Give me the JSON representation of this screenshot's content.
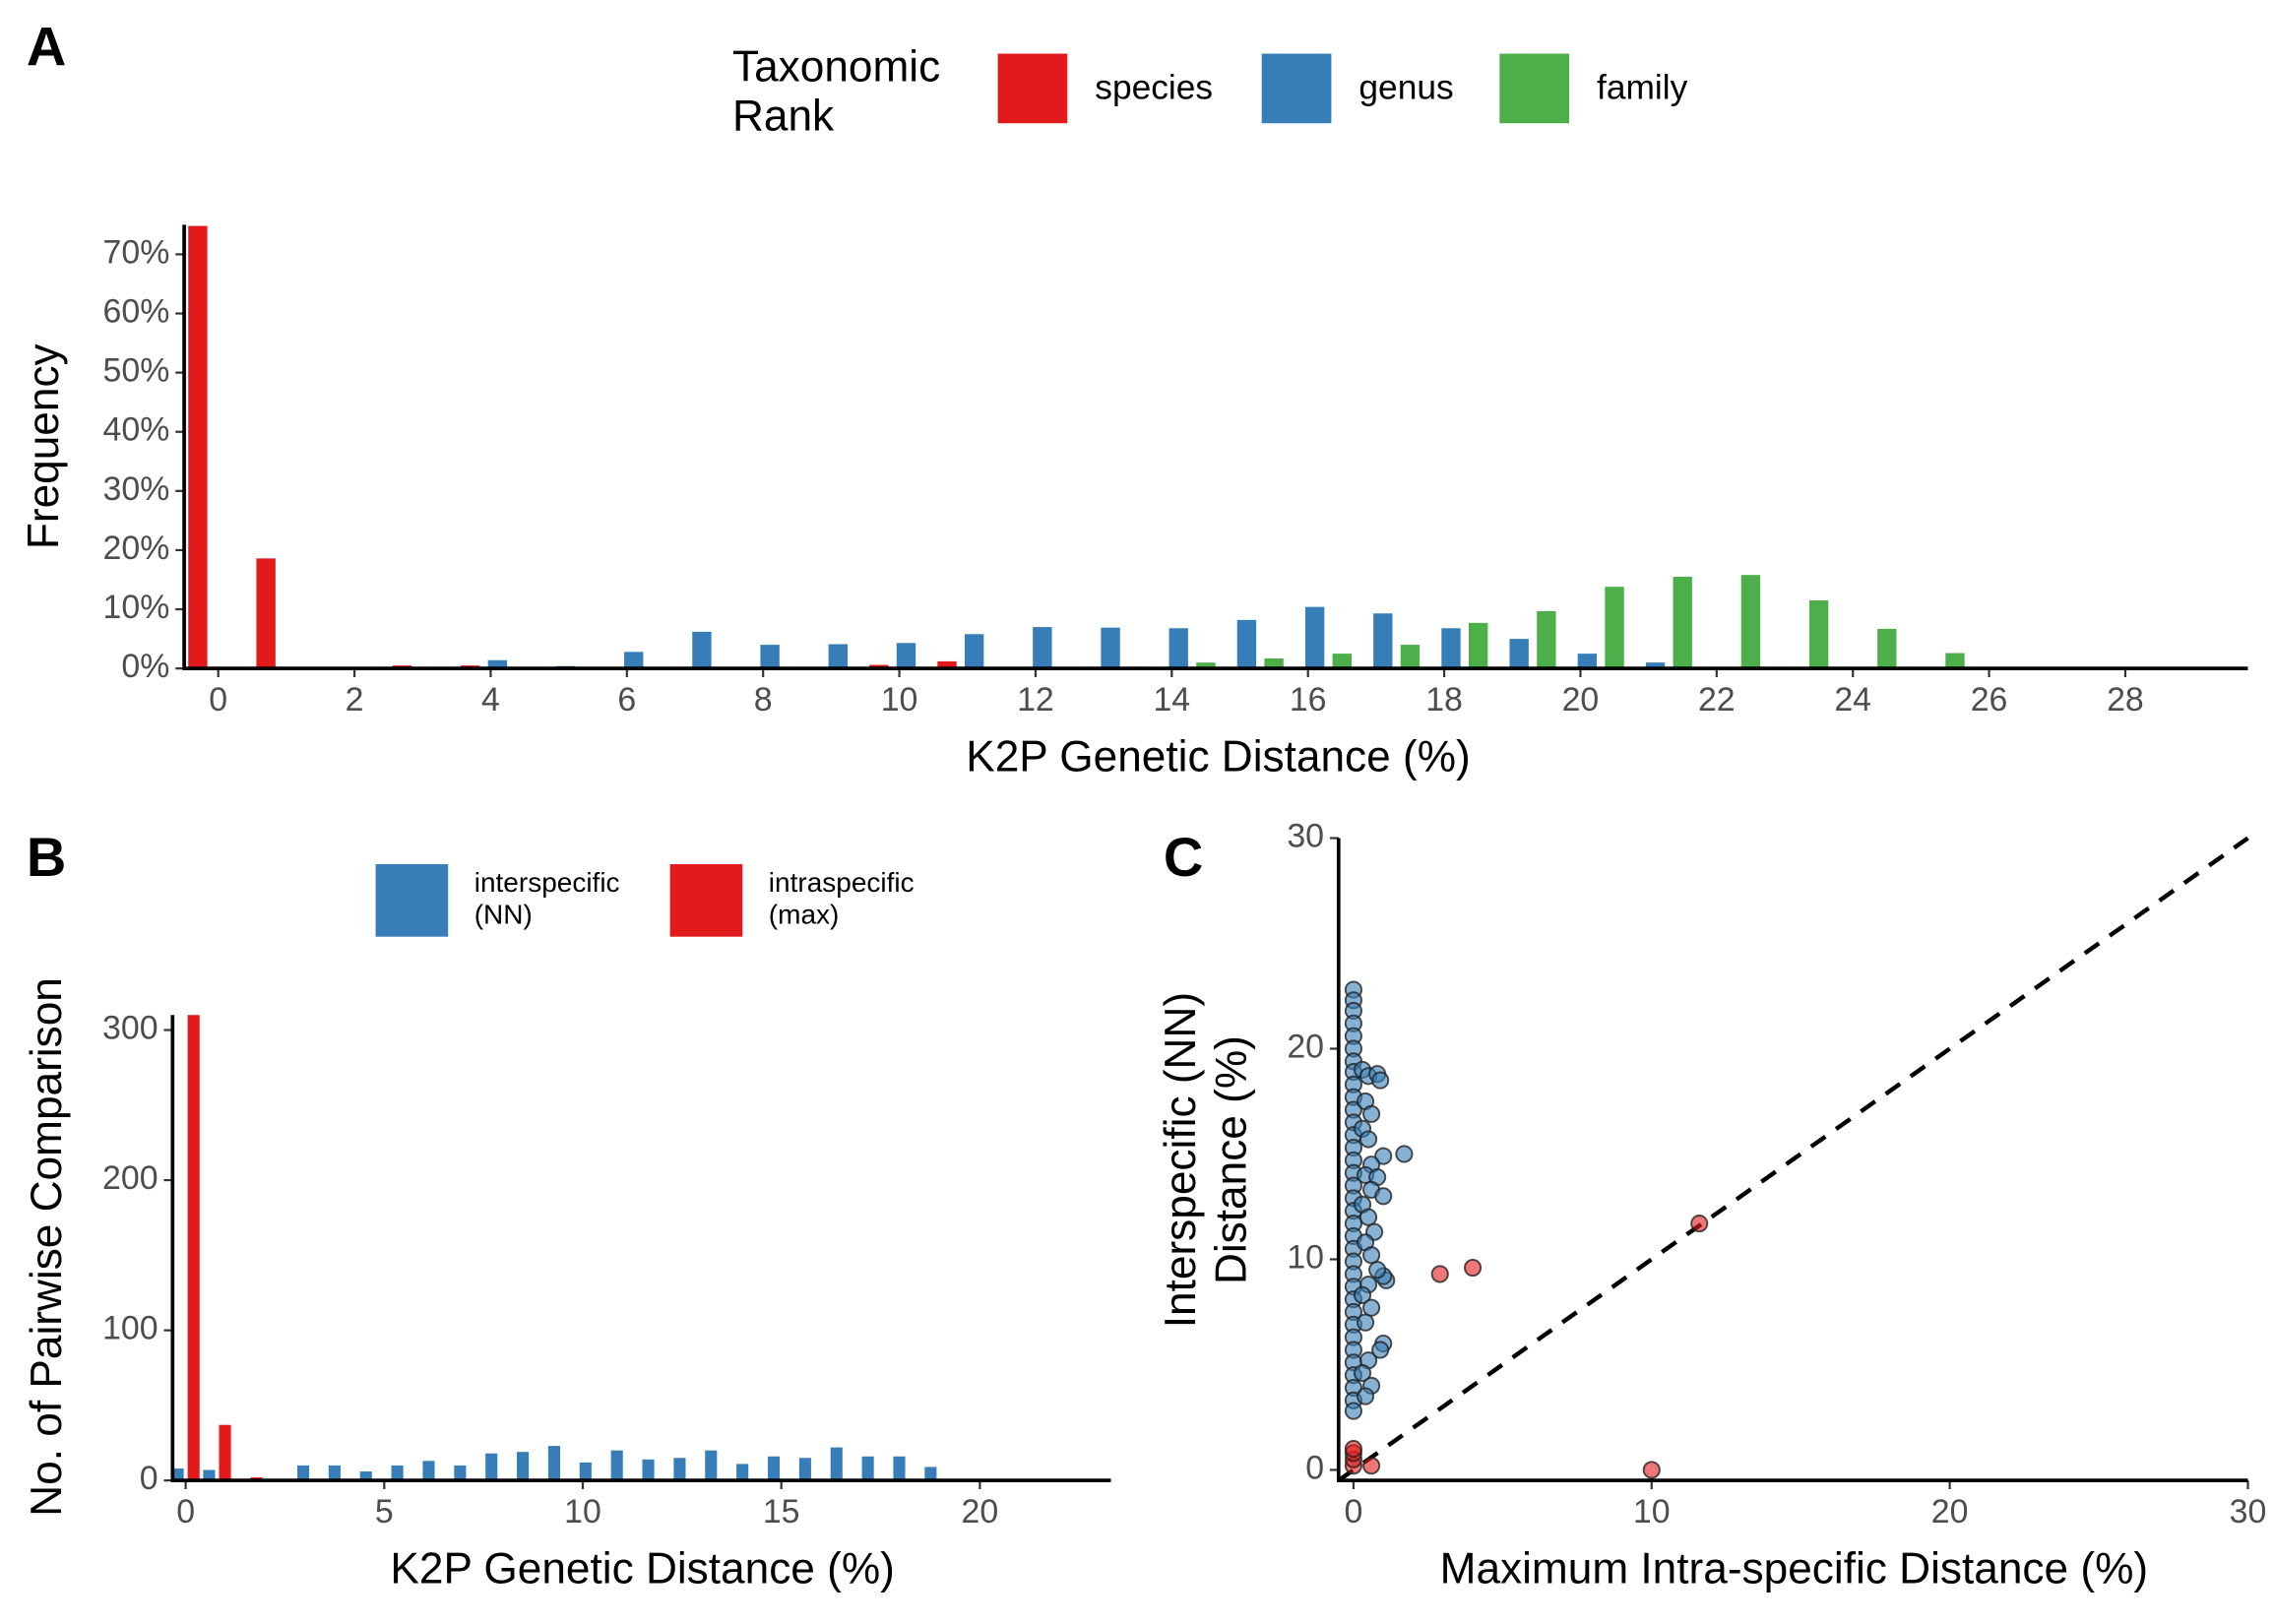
{
  "chart_data": [
    {
      "type": "bar",
      "panel_label": "A",
      "legend": "top",
      "legend_title": "Taxonomic Rank",
      "xlabel": "K2P Genetic Distance (%)",
      "ylabel": "Frequency",
      "x": [
        0,
        1,
        2,
        3,
        4,
        5,
        6,
        7,
        8,
        9,
        10,
        11,
        12,
        13,
        14,
        15,
        16,
        17,
        18,
        19,
        20,
        21,
        22,
        23,
        24,
        25,
        26,
        27
      ],
      "series": [
        {
          "name": "species",
          "color": "#e31a1c",
          "values": [
            74.8,
            18.6,
            0,
            0.5,
            0.5,
            0,
            0,
            0,
            0,
            0,
            0.6,
            1.2,
            0,
            0,
            0,
            0,
            0,
            0,
            0,
            0,
            0,
            0,
            0,
            0,
            0,
            0,
            0,
            0
          ]
        },
        {
          "name": "genus",
          "color": "#377eb8",
          "values": [
            0,
            0,
            0,
            0,
            1.4,
            0.4,
            2.8,
            6.2,
            4.0,
            4.1,
            4.3,
            5.8,
            7.0,
            6.9,
            6.8,
            8.2,
            10.4,
            9.3,
            6.8,
            5.0,
            2.5,
            1.0,
            0,
            0,
            0,
            0,
            0,
            0
          ]
        },
        {
          "name": "family",
          "color": "#4daf4a",
          "values": [
            0,
            0,
            0,
            0,
            0,
            0,
            0,
            0,
            0,
            0,
            0,
            0,
            0,
            0.3,
            1.0,
            1.7,
            2.5,
            4.0,
            7.7,
            9.7,
            13.8,
            15.5,
            15.8,
            11.5,
            6.7,
            2.6,
            0.2,
            0.1
          ]
        }
      ],
      "xlim": [
        -0.5,
        29.8
      ],
      "ylim": [
        0,
        75
      ],
      "xticks": [
        0,
        2,
        4,
        6,
        8,
        10,
        12,
        14,
        16,
        18,
        20,
        22,
        24,
        26,
        28
      ],
      "yticks": [
        {
          "value": 0,
          "label": "0%"
        },
        {
          "value": 10,
          "label": "10%"
        },
        {
          "value": 20,
          "label": "20%"
        },
        {
          "value": 30,
          "label": "30%"
        },
        {
          "value": 40,
          "label": "40%"
        },
        {
          "value": 50,
          "label": "50%"
        },
        {
          "value": 60,
          "label": "60%"
        },
        {
          "value": 70,
          "label": "70%"
        }
      ]
    },
    {
      "type": "bar",
      "panel_label": "B",
      "legend": "top",
      "xlabel": "K2P Genetic Distance (%)",
      "ylabel": "No. of Pairwise Comparison",
      "x": [
        0,
        0.79,
        1.58,
        2.37,
        3.16,
        3.95,
        4.74,
        5.53,
        6.32,
        7.11,
        7.9,
        8.69,
        9.48,
        10.27,
        11.06,
        11.85,
        12.64,
        13.43,
        14.22,
        15.01,
        15.8,
        16.59,
        17.38,
        18.17,
        18.96,
        19.75,
        20.54,
        21.33
      ],
      "series": [
        {
          "name": "interspecific (NN)",
          "color": "#377eb8",
          "values": [
            8,
            7,
            0,
            0,
            10,
            10,
            6,
            10,
            13,
            10,
            18,
            19,
            23,
            12,
            20,
            14,
            15,
            20,
            11,
            16,
            15,
            22,
            16,
            16,
            9,
            1,
            0,
            1
          ]
        },
        {
          "name": "intraspecific (max)",
          "color": "#e31a1c",
          "values": [
            310,
            37,
            2,
            0,
            0,
            0,
            0,
            0,
            0,
            0,
            0,
            0,
            0,
            0,
            0,
            0,
            0,
            0,
            0,
            0,
            0,
            0,
            0,
            0,
            0,
            0,
            0,
            0
          ]
        }
      ],
      "xlim": [
        -0.33,
        23.3
      ],
      "ylim": [
        0,
        310
      ],
      "xticks": [
        0,
        5,
        10,
        15,
        20
      ],
      "yticks": [
        0,
        100,
        200,
        300
      ]
    },
    {
      "type": "scatter",
      "panel_label": "C",
      "identity_line": true,
      "xlabel": "Maximum Intra-specific Distance (%)",
      "ylabel": "Interspecific (NN) Distance (%)",
      "series": [
        {
          "color": "#377eb8",
          "x": [
            0,
            0,
            0,
            0,
            0,
            0,
            0,
            0,
            0,
            0,
            0,
            0,
            0,
            0,
            0,
            0,
            0,
            0,
            0,
            0,
            0,
            0,
            0,
            0,
            0,
            0,
            0,
            0,
            0,
            0,
            0,
            0,
            0,
            0,
            0,
            0.3,
            0.5,
            0.8,
            0.9,
            0.4,
            0.6,
            0.3,
            0.5,
            1.7,
            1.0,
            0.6,
            0.4,
            0.8,
            0.6,
            1.0,
            0.3,
            0.5,
            0.7,
            0.4,
            0.6,
            1.1,
            1.0,
            0.8,
            0.5,
            0.3,
            0.6,
            0.4,
            1.0,
            0.9,
            0.5,
            0.3,
            0.6,
            0.4
          ],
          "values": [
            22.8,
            22.3,
            21.8,
            21.2,
            20.6,
            20.0,
            19.4,
            18.9,
            18.3,
            17.7,
            17.1,
            16.5,
            15.9,
            15.3,
            14.7,
            14.1,
            13.5,
            12.9,
            12.3,
            11.7,
            11.1,
            10.5,
            9.9,
            9.3,
            8.7,
            8.1,
            7.5,
            6.9,
            6.3,
            5.7,
            5.1,
            4.5,
            3.9,
            3.3,
            2.8,
            19.0,
            18.7,
            18.8,
            18.5,
            17.5,
            16.9,
            16.2,
            15.7,
            15.0,
            14.9,
            14.5,
            14.0,
            13.9,
            13.3,
            13.0,
            12.6,
            12.0,
            11.3,
            10.8,
            10.2,
            9.0,
            9.2,
            9.5,
            8.8,
            8.3,
            7.7,
            7.0,
            6.0,
            5.7,
            5.2,
            4.6,
            4.0,
            3.5
          ]
        },
        {
          "color": "#e31a1c",
          "x": [
            0,
            0,
            0,
            0,
            0.6,
            2.9,
            4.0,
            11.6,
            10.0
          ],
          "values": [
            0.2,
            0.5,
            0.8,
            1.0,
            0.2,
            9.3,
            9.6,
            11.7,
            0.0
          ]
        }
      ],
      "xlim": [
        -0.5,
        30
      ],
      "ylim": [
        -0.5,
        30
      ],
      "xticks": [
        0,
        10,
        20,
        30
      ],
      "yticks": [
        0,
        10,
        20,
        30
      ]
    }
  ]
}
